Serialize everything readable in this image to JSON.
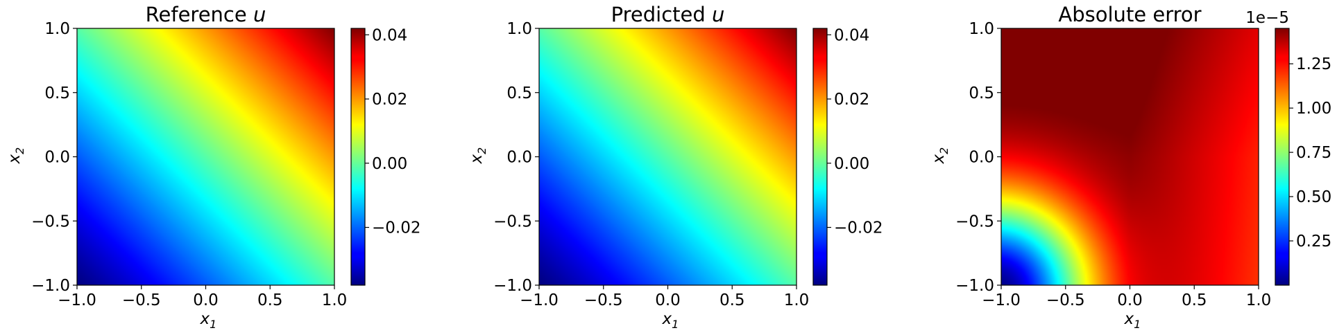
{
  "chart_data": [
    {
      "type": "heatmap",
      "title": "Reference u",
      "title_parts": {
        "text": "Reference ",
        "symbol": "u"
      },
      "xlabel": {
        "symbol": "x",
        "sub": "1"
      },
      "ylabel": {
        "symbol": "x",
        "sub": "2"
      },
      "xlim": [
        -1.0,
        1.0
      ],
      "ylim": [
        -1.0,
        1.0
      ],
      "xticks": [
        "−1.0",
        "−0.5",
        "0.0",
        "0.5",
        "1.0"
      ],
      "yticks": [
        "−1.0",
        "−0.5",
        "0.0",
        "0.5",
        "1.0"
      ],
      "xtick_values": [
        -1.0,
        -0.5,
        0.0,
        0.5,
        1.0
      ],
      "ytick_values": [
        -1.0,
        -0.5,
        0.0,
        0.5,
        1.0
      ],
      "colormap": "jet",
      "field": "linear_sum",
      "corner_values": {
        "bottom_left": -0.038,
        "top_right": 0.042
      },
      "colorbar": {
        "range": [
          -0.038,
          0.042
        ],
        "ticks": [
          "−0.02",
          "0.00",
          "0.02",
          "0.04"
        ],
        "tick_values": [
          -0.02,
          0.0,
          0.02,
          0.04
        ],
        "offset_text": ""
      },
      "grid": false
    },
    {
      "type": "heatmap",
      "title": "Predicted u",
      "title_parts": {
        "text": "Predicted ",
        "symbol": "u"
      },
      "xlabel": {
        "symbol": "x",
        "sub": "1"
      },
      "ylabel": {
        "symbol": "x",
        "sub": "2"
      },
      "xlim": [
        -1.0,
        1.0
      ],
      "ylim": [
        -1.0,
        1.0
      ],
      "xticks": [
        "−1.0",
        "−0.5",
        "0.0",
        "0.5",
        "1.0"
      ],
      "yticks": [
        "−1.0",
        "−0.5",
        "0.0",
        "0.5",
        "1.0"
      ],
      "xtick_values": [
        -1.0,
        -0.5,
        0.0,
        0.5,
        1.0
      ],
      "ytick_values": [
        -1.0,
        -0.5,
        0.0,
        0.5,
        1.0
      ],
      "colormap": "jet",
      "field": "linear_sum",
      "corner_values": {
        "bottom_left": -0.038,
        "top_right": 0.042
      },
      "colorbar": {
        "range": [
          -0.038,
          0.042
        ],
        "ticks": [
          "−0.02",
          "0.00",
          "0.02",
          "0.04"
        ],
        "tick_values": [
          -0.02,
          0.0,
          0.02,
          0.04
        ],
        "offset_text": ""
      },
      "grid": false
    },
    {
      "type": "heatmap",
      "title": "Absolute error",
      "title_parts": {
        "text": "Absolute error",
        "symbol": ""
      },
      "xlabel": {
        "symbol": "x",
        "sub": "1"
      },
      "ylabel": {
        "symbol": "x",
        "sub": "2"
      },
      "xlim": [
        -1.0,
        1.0
      ],
      "ylim": [
        -1.0,
        1.0
      ],
      "xticks": [
        "−1.0",
        "−0.5",
        "0.0",
        "0.5",
        "1.0"
      ],
      "yticks": [
        "−1.0",
        "−0.5",
        "0.0",
        "0.5",
        "1.0"
      ],
      "xtick_values": [
        -1.0,
        -0.5,
        0.0,
        0.5,
        1.0
      ],
      "ytick_values": [
        -1.0,
        -0.5,
        0.0,
        0.5,
        1.0
      ],
      "colormap": "jet",
      "field": "error_radial",
      "corner_values": {
        "bottom_left": 0.0,
        "top_left": 1.45,
        "top_right": 1.0,
        "bottom_right": 1.15
      },
      "colorbar": {
        "range": [
          0.0,
          1.45
        ],
        "ticks": [
          "0.25",
          "0.50",
          "0.75",
          "1.00",
          "1.25"
        ],
        "tick_values": [
          0.25,
          0.5,
          0.75,
          1.0,
          1.25
        ],
        "offset_text": "1e−5"
      },
      "grid": false
    }
  ]
}
